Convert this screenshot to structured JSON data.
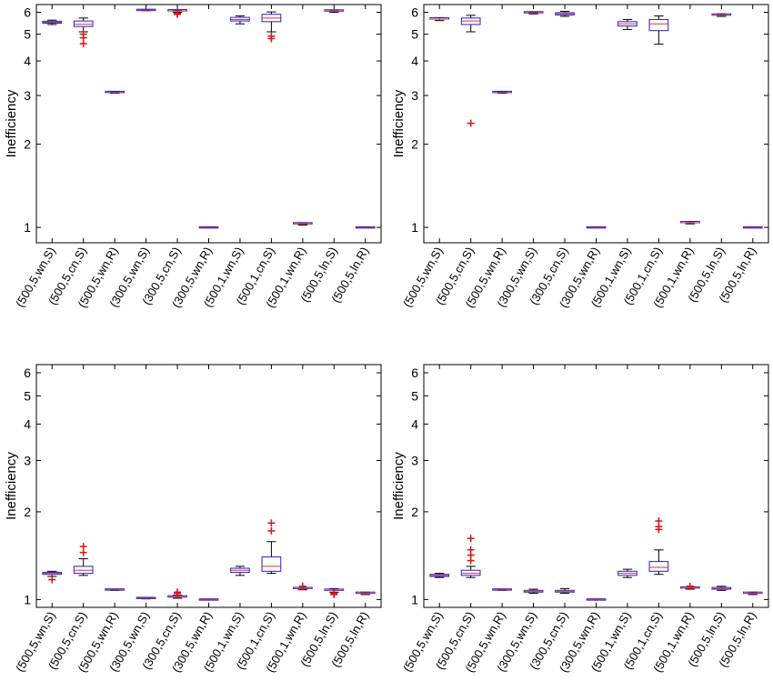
{
  "chart_data": [
    {
      "type": "boxplot",
      "ylabel": "Inefficiency",
      "yscale": "log",
      "ylim": [
        0.88,
        6.4
      ],
      "yticks": [
        1,
        2,
        3,
        4,
        5,
        6
      ],
      "categories": [
        "(500,5,wn,S)",
        "(500,5,cn,S)",
        "(500,5,wn,R)",
        "(300,5,wn,S)",
        "(300,5,cn,S)",
        "(300,5,wn,R)",
        "(500,1,wn,S)",
        "(500,1,cn,S)",
        "(500,1,wn,R)",
        "(500,5,ln,S)",
        "(500,5,ln,R)"
      ],
      "boxes": [
        {
          "wlo": 5.42,
          "q1": 5.48,
          "med": 5.52,
          "q3": 5.57,
          "whi": 5.62,
          "outliers": []
        },
        {
          "wlo": 5.1,
          "q1": 5.33,
          "med": 5.43,
          "q3": 5.58,
          "whi": 5.72,
          "outliers": [
            5.0,
            4.85,
            4.62
          ]
        },
        {
          "wlo": 3.06,
          "q1": 3.07,
          "med": 3.08,
          "q3": 3.09,
          "whi": 3.1,
          "outliers": []
        },
        {
          "wlo": 6.08,
          "q1": 6.1,
          "med": 6.11,
          "q3": 6.12,
          "whi": 6.14,
          "outliers": []
        },
        {
          "wlo": 6.0,
          "q1": 6.04,
          "med": 6.07,
          "q3": 6.1,
          "whi": 6.12,
          "outliers": [
            5.95,
            5.9
          ]
        },
        {
          "wlo": 1.0,
          "q1": 1.0,
          "med": 1.0,
          "q3": 1.0,
          "whi": 1.0,
          "outliers": []
        },
        {
          "wlo": 5.45,
          "q1": 5.58,
          "med": 5.65,
          "q3": 5.75,
          "whi": 5.82,
          "outliers": []
        },
        {
          "wlo": 5.1,
          "q1": 5.55,
          "med": 5.72,
          "q3": 5.9,
          "whi": 6.02,
          "outliers": [
            4.92,
            4.82
          ]
        },
        {
          "wlo": 1.02,
          "q1": 1.025,
          "med": 1.03,
          "q3": 1.035,
          "whi": 1.04,
          "outliers": []
        },
        {
          "wlo": 6.0,
          "q1": 6.04,
          "med": 6.06,
          "q3": 6.09,
          "whi": 6.12,
          "outliers": []
        },
        {
          "wlo": 1.0,
          "q1": 1.0,
          "med": 1.0,
          "q3": 1.0,
          "whi": 1.0,
          "outliers": []
        }
      ]
    },
    {
      "type": "boxplot",
      "ylabel": "Inefficiency",
      "yscale": "log",
      "ylim": [
        0.88,
        6.4
      ],
      "yticks": [
        1,
        2,
        3,
        4,
        5,
        6
      ],
      "categories": [
        "(500,5,wn,S)",
        "(500,5,cn,S)",
        "(500,5,wn,R)",
        "(300,5,wn,S)",
        "(300,5,cn,S)",
        "(300,5,wn,R)",
        "(500,1,wn,S)",
        "(500,1,cn,S)",
        "(500,1,wn,R)",
        "(500,5,ln,S)",
        "(500,5,ln,R)"
      ],
      "boxes": [
        {
          "wlo": 5.6,
          "q1": 5.64,
          "med": 5.67,
          "q3": 5.7,
          "whi": 5.74,
          "outliers": []
        },
        {
          "wlo": 5.1,
          "q1": 5.42,
          "med": 5.58,
          "q3": 5.72,
          "whi": 5.85,
          "outliers": [
            2.38
          ]
        },
        {
          "wlo": 3.06,
          "q1": 3.07,
          "med": 3.08,
          "q3": 3.09,
          "whi": 3.1,
          "outliers": []
        },
        {
          "wlo": 5.92,
          "q1": 5.95,
          "med": 5.97,
          "q3": 6.0,
          "whi": 6.02,
          "outliers": []
        },
        {
          "wlo": 5.8,
          "q1": 5.87,
          "med": 5.93,
          "q3": 5.98,
          "whi": 6.05,
          "outliers": []
        },
        {
          "wlo": 1.0,
          "q1": 1.0,
          "med": 1.0,
          "q3": 1.0,
          "whi": 1.0,
          "outliers": []
        },
        {
          "wlo": 5.2,
          "q1": 5.35,
          "med": 5.45,
          "q3": 5.55,
          "whi": 5.65,
          "outliers": []
        },
        {
          "wlo": 4.6,
          "q1": 5.15,
          "med": 5.45,
          "q3": 5.65,
          "whi": 5.82,
          "outliers": []
        },
        {
          "wlo": 1.03,
          "q1": 1.035,
          "med": 1.04,
          "q3": 1.045,
          "whi": 1.05,
          "outliers": []
        },
        {
          "wlo": 5.8,
          "q1": 5.84,
          "med": 5.86,
          "q3": 5.89,
          "whi": 5.92,
          "outliers": []
        },
        {
          "wlo": 1.0,
          "q1": 1.0,
          "med": 1.0,
          "q3": 1.0,
          "whi": 1.0,
          "outliers": []
        }
      ]
    },
    {
      "type": "boxplot",
      "ylabel": "Inefficiency",
      "yscale": "log",
      "ylim": [
        0.94,
        6.4
      ],
      "yticks": [
        1,
        2,
        3,
        4,
        5,
        6
      ],
      "categories": [
        "(500,5,wn,S)",
        "(500,5,cn,S)",
        "(500,5,wn,R)",
        "(300,5,wn,S)",
        "(300,5,cn,S)",
        "(300,5,wn,R)",
        "(500,1,wn,S)",
        "(500,1,cn,S)",
        "(500,1,wn,R)",
        "(500,5,ln,S)",
        "(500,5,ln,R)"
      ],
      "boxes": [
        {
          "wlo": 1.2,
          "q1": 1.22,
          "med": 1.23,
          "q3": 1.24,
          "whi": 1.25,
          "outliers": [
            1.17
          ]
        },
        {
          "wlo": 1.21,
          "q1": 1.23,
          "med": 1.26,
          "q3": 1.3,
          "whi": 1.38,
          "outliers": [
            1.45,
            1.52
          ]
        },
        {
          "wlo": 1.075,
          "q1": 1.078,
          "med": 1.08,
          "q3": 1.082,
          "whi": 1.085,
          "outliers": []
        },
        {
          "wlo": 1.005,
          "q1": 1.008,
          "med": 1.01,
          "q3": 1.012,
          "whi": 1.015,
          "outliers": []
        },
        {
          "wlo": 1.01,
          "q1": 1.015,
          "med": 1.02,
          "q3": 1.025,
          "whi": 1.035,
          "outliers": [
            1.05,
            1.06
          ]
        },
        {
          "wlo": 1.0,
          "q1": 1.0,
          "med": 1.0,
          "q3": 1.0,
          "whi": 1.0,
          "outliers": []
        },
        {
          "wlo": 1.21,
          "q1": 1.24,
          "med": 1.26,
          "q3": 1.28,
          "whi": 1.3,
          "outliers": []
        },
        {
          "wlo": 1.23,
          "q1": 1.25,
          "med": 1.3,
          "q3": 1.4,
          "whi": 1.58,
          "outliers": [
            1.72,
            1.83
          ]
        },
        {
          "wlo": 1.08,
          "q1": 1.085,
          "med": 1.09,
          "q3": 1.095,
          "whi": 1.1,
          "outliers": [
            1.11
          ]
        },
        {
          "wlo": 1.06,
          "q1": 1.07,
          "med": 1.075,
          "q3": 1.08,
          "whi": 1.09,
          "outliers": [
            1.05,
            1.04
          ]
        },
        {
          "wlo": 1.04,
          "q1": 1.045,
          "med": 1.05,
          "q3": 1.055,
          "whi": 1.06,
          "outliers": []
        }
      ]
    },
    {
      "type": "boxplot",
      "ylabel": "Inefficiency",
      "yscale": "log",
      "ylim": [
        0.94,
        6.4
      ],
      "yticks": [
        1,
        2,
        3,
        4,
        5,
        6
      ],
      "categories": [
        "(500,5,wn,S)",
        "(500,5,cn,S)",
        "(500,5,wn,R)",
        "(300,5,wn,S)",
        "(300,5,cn,S)",
        "(300,5,wn,R)",
        "(500,1,wn,S)",
        "(500,1,cn,S)",
        "(500,1,wn,R)",
        "(500,5,ln,S)",
        "(500,5,ln,R)"
      ],
      "boxes": [
        {
          "wlo": 1.19,
          "q1": 1.2,
          "med": 1.21,
          "q3": 1.22,
          "whi": 1.23,
          "outliers": []
        },
        {
          "wlo": 1.19,
          "q1": 1.21,
          "med": 1.23,
          "q3": 1.26,
          "whi": 1.3,
          "outliers": [
            1.36,
            1.42,
            1.48,
            1.62
          ]
        },
        {
          "wlo": 1.075,
          "q1": 1.078,
          "med": 1.08,
          "q3": 1.082,
          "whi": 1.085,
          "outliers": []
        },
        {
          "wlo": 1.05,
          "q1": 1.06,
          "med": 1.065,
          "q3": 1.075,
          "whi": 1.085,
          "outliers": []
        },
        {
          "wlo": 1.05,
          "q1": 1.06,
          "med": 1.065,
          "q3": 1.075,
          "whi": 1.09,
          "outliers": []
        },
        {
          "wlo": 1.0,
          "q1": 1.0,
          "med": 1.0,
          "q3": 1.0,
          "whi": 1.0,
          "outliers": []
        },
        {
          "wlo": 1.19,
          "q1": 1.21,
          "med": 1.23,
          "q3": 1.25,
          "whi": 1.27,
          "outliers": []
        },
        {
          "wlo": 1.22,
          "q1": 1.25,
          "med": 1.29,
          "q3": 1.35,
          "whi": 1.48,
          "outliers": [
            1.74,
            1.78,
            1.86
          ]
        },
        {
          "wlo": 1.085,
          "q1": 1.09,
          "med": 1.095,
          "q3": 1.1,
          "whi": 1.105,
          "outliers": [
            1.11
          ]
        },
        {
          "wlo": 1.075,
          "q1": 1.085,
          "med": 1.09,
          "q3": 1.1,
          "whi": 1.11,
          "outliers": []
        },
        {
          "wlo": 1.04,
          "q1": 1.045,
          "med": 1.05,
          "q3": 1.055,
          "whi": 1.06,
          "outliers": []
        }
      ]
    }
  ],
  "colors": {
    "box": "#1f1fd8",
    "median": "#e03030",
    "whisker": "#000000",
    "outlier": "#e01010",
    "axis": "#000000"
  }
}
